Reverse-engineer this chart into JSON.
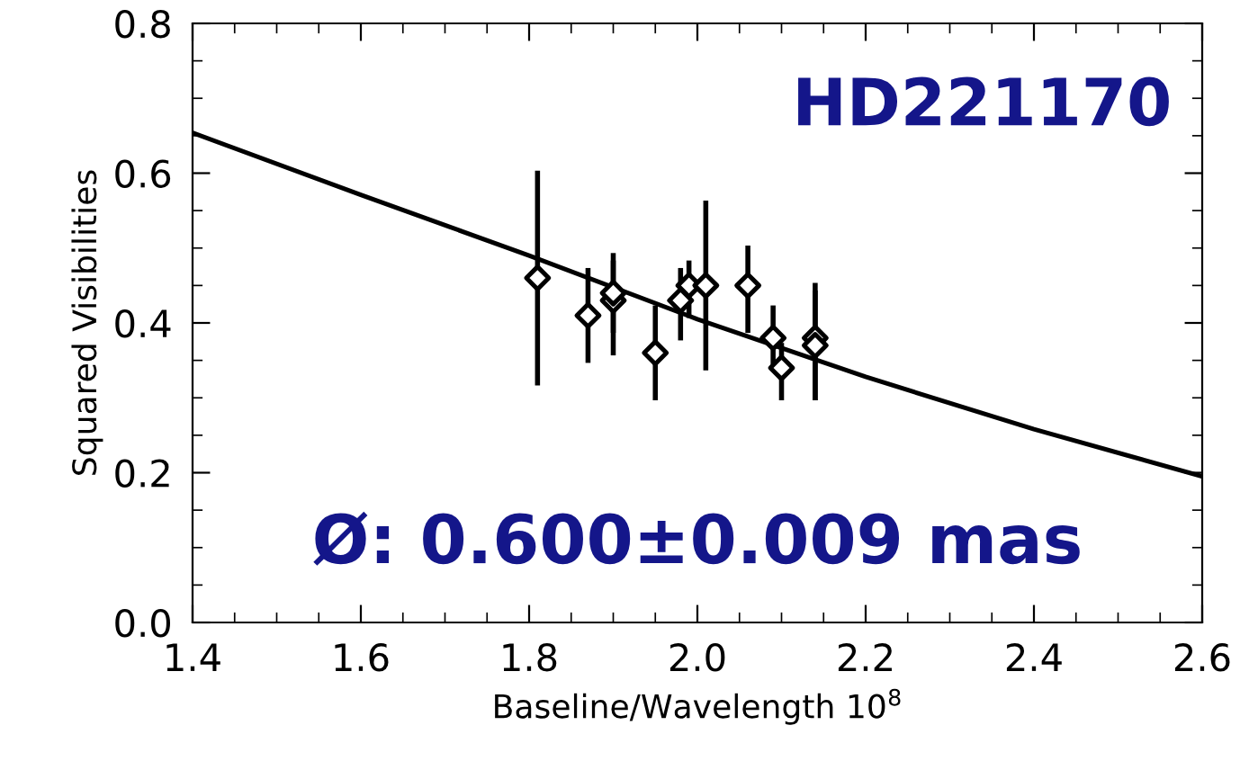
{
  "chart_data": {
    "type": "scatter",
    "xlabel": "Baseline/Wavelength 10$^{8}$",
    "ylabel": "Squared Visibilities",
    "xlim": [
      1.4,
      2.6
    ],
    "xticks": [
      {
        "value": 1.4,
        "label": "1.4"
      },
      {
        "value": 1.6,
        "label": "1.6"
      },
      {
        "value": 1.8,
        "label": "1.8"
      },
      {
        "value": 2.0,
        "label": "2.0"
      },
      {
        "value": 2.2,
        "label": "2.2"
      },
      {
        "value": 2.4,
        "label": "2.4"
      },
      {
        "value": 2.6,
        "label": "2.6"
      }
    ],
    "ylim": [
      0,
      0.8
    ],
    "yticks": [
      {
        "value": 0,
        "label": "0.0"
      },
      {
        "value": 0.2,
        "label": "0.2"
      },
      {
        "value": 0.4,
        "label": "0.4"
      },
      {
        "value": 0.6,
        "label": "0.6"
      },
      {
        "value": 0.8,
        "label": "0.8"
      }
    ],
    "grid": false,
    "series": [
      {
        "marker": "diamond",
        "color": "#000000",
        "x": [
          1.81,
          1.87,
          1.9,
          1.9,
          1.95,
          1.98,
          1.99,
          2.01,
          2.06,
          2.09,
          2.1,
          2.14,
          2.14
        ],
        "values": [
          0.46,
          0.41,
          0.43,
          0.44,
          0.36,
          0.43,
          0.45,
          0.45,
          0.45,
          0.38,
          0.34,
          0.38,
          0.37
        ],
        "errors": [
          [
            0.32,
            0.6
          ],
          [
            0.35,
            0.47
          ],
          [
            0.36,
            0.49
          ],
          [
            0.39,
            0.48
          ],
          [
            0.3,
            0.42
          ],
          [
            0.38,
            0.47
          ],
          [
            0.41,
            0.48
          ],
          [
            0.34,
            0.56
          ],
          [
            0.39,
            0.5
          ],
          [
            0.34,
            0.42
          ],
          [
            0.3,
            0.37
          ],
          [
            0.3,
            0.45
          ],
          [
            0.3,
            0.44
          ]
        ]
      },
      {
        "type": "line",
        "color": "#000000",
        "x": [
          1.4,
          1.6,
          1.8,
          2.0,
          2.2,
          2.4,
          2.6
        ],
        "values": [
          0.654,
          0.571,
          0.49,
          0.405,
          0.328,
          0.258,
          0.195
        ]
      }
    ],
    "annotations": [
      "HD221170",
      "Ø: 0.600±0.009 mas"
    ]
  }
}
